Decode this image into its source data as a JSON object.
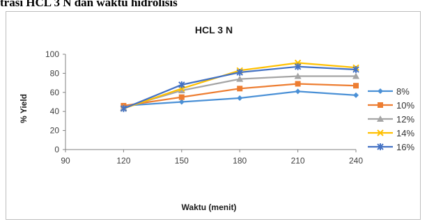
{
  "page": {
    "header_text": "trasi HCL 3 N dan waktu hidrolisis"
  },
  "colors": {
    "s8": "#4a90d6",
    "s10": "#ed7d31",
    "s12": "#a5a5a5",
    "s14": "#ffc000",
    "s16": "#4472c4",
    "axis": "#808080",
    "grid": "#d9d9d9"
  },
  "chart_data": {
    "type": "line",
    "title": "HCL 3 N",
    "xlabel": "Waktu (menit)",
    "ylabel": "% Yield",
    "xlim": [
      90,
      240
    ],
    "ylim": [
      0,
      100
    ],
    "x_ticks": [
      "90",
      "120",
      "150",
      "180",
      "210",
      "240"
    ],
    "y_ticks": [
      "0",
      "20",
      "40",
      "60",
      "80",
      "100"
    ],
    "grid": false,
    "legend_position": "right",
    "x": [
      120,
      150,
      180,
      210,
      240
    ],
    "series": [
      {
        "name": "8%",
        "marker": "diamond",
        "values": [
          46,
          50,
          54,
          61,
          57
        ]
      },
      {
        "name": "10%",
        "marker": "square",
        "values": [
          46,
          55,
          64,
          69,
          67
        ]
      },
      {
        "name": "12%",
        "marker": "triangle",
        "values": [
          44,
          62,
          74,
          77,
          77
        ]
      },
      {
        "name": "14%",
        "marker": "x",
        "values": [
          43,
          64,
          83,
          91,
          86
        ]
      },
      {
        "name": "16%",
        "marker": "star",
        "values": [
          43,
          68,
          81,
          87,
          84
        ]
      }
    ]
  }
}
